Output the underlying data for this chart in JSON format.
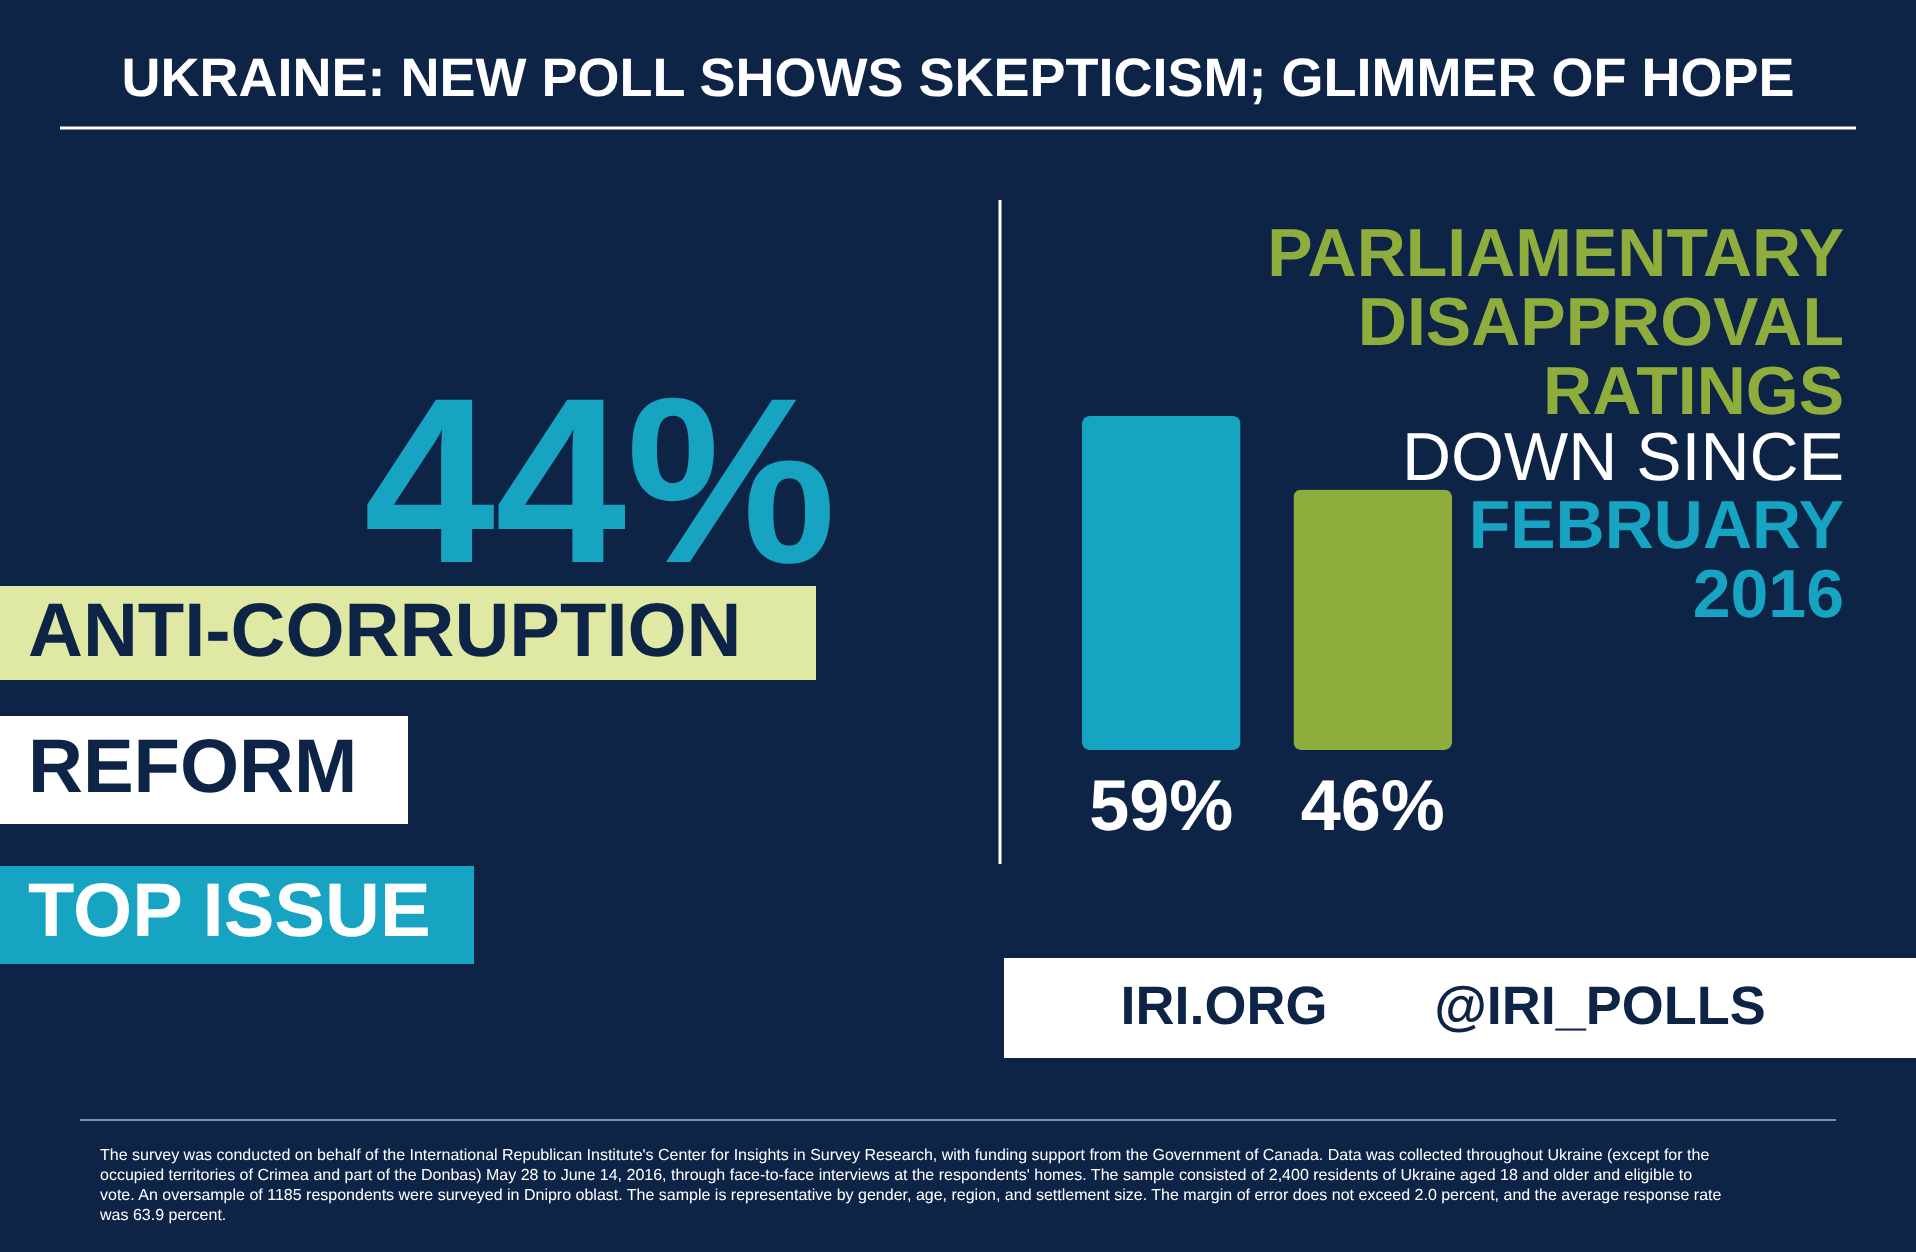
{
  "chart_data": {
    "type": "bar",
    "title": "UKRAINE: NEW POLL SHOWS SKEPTICISM; GLIMMER OF HOPE",
    "categories": [
      null,
      null
    ],
    "values": [
      59,
      46
    ],
    "colors": [
      "#17a3c2",
      "#8fad3d"
    ],
    "value_labels": [
      "59%",
      "46%"
    ],
    "annotations": [
      "44%",
      "ANTI-CORRUPTION",
      "REFORM",
      "TOP ISSUE",
      "PARLIAMENTARY DISAPPROVAL RATINGS",
      "DOWN SINCE",
      "FEBRUARY 2016",
      "IRI.ORG",
      "@IRI_POLLS",
      "The survey was conducted on behalf of the International Republican Institute's Center for Insights in Survey Research, with funding support from the Government of Canada. Data was collected throughout Ukraine (except for the occupied territories of Crimea and part of the Donbas) May 28 to June 14, 2016, through face-to-face interviews at the respondents' homes. The sample consisted of 2,400 residents of Ukraine aged 18 and older and eligible to vote. An oversample of 1185 respondents were surveyed in Dnipro oblast. The sample is representative by gender, age, region, and settlement size. The margin of error does not exceed 2.0 percent, and the average response rate was 63.9 percent."
    ]
  }
}
